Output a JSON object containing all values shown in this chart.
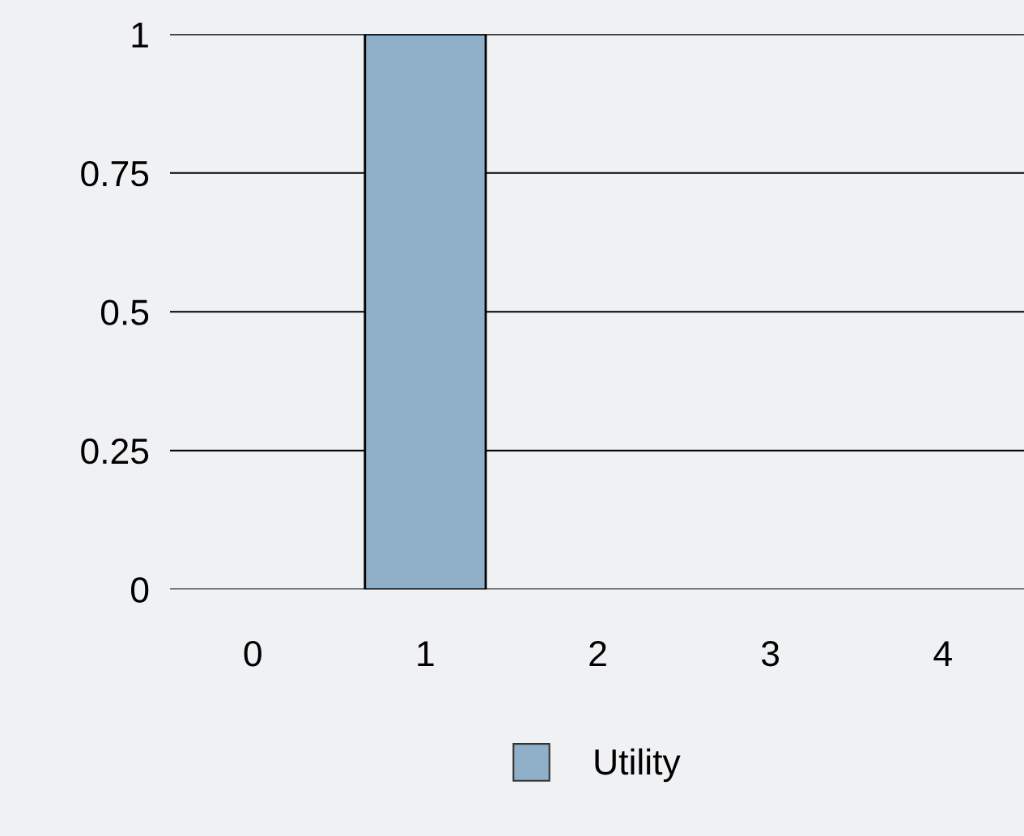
{
  "chart_data": {
    "type": "bar",
    "categories": [
      "0",
      "1",
      "2",
      "3",
      "4"
    ],
    "series": [
      {
        "name": "Utility",
        "color": "#8fb0c8",
        "values": [
          null,
          1,
          null,
          null,
          null
        ]
      }
    ],
    "ylim": [
      0,
      1
    ],
    "yticks": [
      0,
      0.25,
      0.5,
      0.75,
      1
    ],
    "grid": "y",
    "legend": "bottom"
  }
}
